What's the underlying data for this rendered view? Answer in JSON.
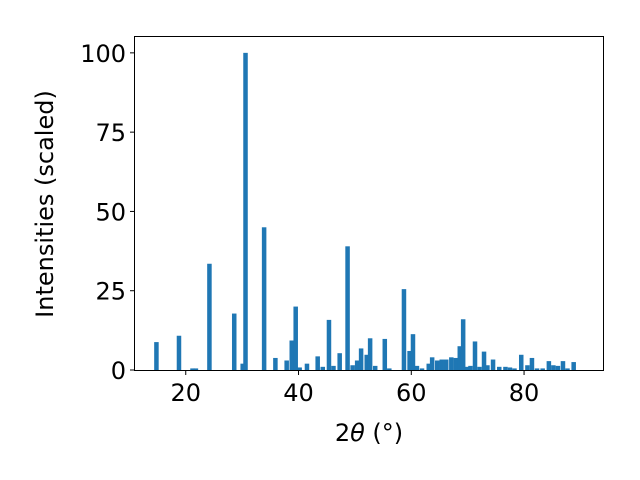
{
  "chart_data": {
    "type": "bar",
    "title": "",
    "xlabel_prefix": "2",
    "xlabel_theta": "θ",
    "xlabel_suffix": " (°)",
    "ylabel": "Intensities (scaled)",
    "xlim": [
      11,
      94
    ],
    "ylim": [
      0,
      105
    ],
    "xticks": [
      "20",
      "40",
      "60",
      "80"
    ],
    "yticks": [
      "0",
      "25",
      "50",
      "75",
      "100"
    ],
    "xtick_values": [
      20,
      40,
      60,
      80
    ],
    "ytick_values": [
      0,
      25,
      50,
      75,
      100
    ],
    "grid": false,
    "bar_color": "#1f77b4",
    "bar_width": 0.8,
    "series": [
      {
        "x": [
          14.8,
          18.8,
          21.2,
          21.8,
          24.2,
          28.6,
          30.1,
          30.6,
          33.9,
          35.9,
          37.9,
          38.8,
          39.5,
          40.2,
          41.5,
          43.4,
          44.3,
          45.4,
          46.2,
          47.3,
          48.7,
          49.6,
          50.4,
          51.1,
          52.1,
          52.7,
          53.6,
          55.3,
          56.1,
          58.7,
          59.7,
          60.3,
          61.0,
          61.9,
          63.1,
          63.7,
          64.6,
          65.4,
          66.2,
          67.1,
          67.9,
          68.6,
          69.2,
          69.9,
          70.5,
          71.3,
          72.1,
          72.9,
          73.5,
          74.5,
          75.6,
          76.7,
          77.5,
          78.3,
          79.5,
          80.6,
          81.4,
          82.3,
          83.3,
          84.4,
          85.2,
          86.0,
          86.9,
          87.7,
          88.8
        ],
        "values": [
          8.8,
          10.8,
          0.5,
          0.5,
          33.5,
          17.8,
          2.0,
          100.0,
          45.0,
          3.8,
          3.0,
          9.3,
          20.0,
          0.8,
          2.0,
          4.3,
          1.0,
          15.8,
          1.3,
          5.3,
          39.0,
          1.5,
          3.0,
          6.8,
          4.8,
          10.0,
          1.3,
          9.8,
          0.5,
          25.5,
          6.0,
          11.3,
          1.3,
          0.5,
          2.0,
          4.0,
          3.0,
          3.3,
          3.3,
          4.0,
          3.8,
          7.5,
          16.0,
          1.0,
          1.3,
          9.0,
          1.0,
          5.8,
          1.5,
          3.3,
          1.0,
          1.0,
          0.8,
          0.5,
          4.8,
          1.5,
          3.8,
          0.5,
          0.5,
          2.8,
          1.5,
          1.3,
          2.8,
          0.5,
          2.5
        ]
      }
    ]
  }
}
